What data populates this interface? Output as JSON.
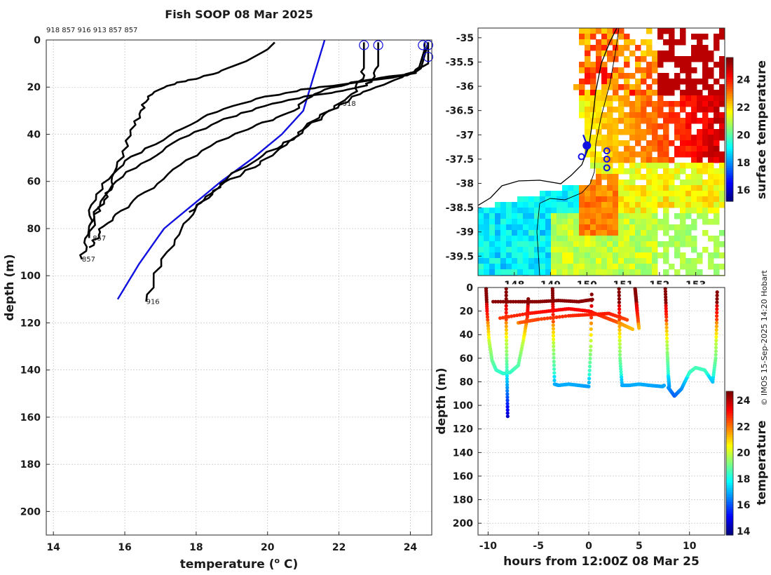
{
  "chart_data": [
    {
      "type": "line",
      "title": "Fish SOOP 08 Mar 2025",
      "xlabel": "temperature (",
      "xlabel_sup": "o",
      "xlabel_unit": " C)",
      "ylabel": "depth (m)",
      "xlim": [
        13.8,
        24.6
      ],
      "ylim": [
        0,
        210
      ],
      "xticks": [
        "14",
        "16",
        "18",
        "20",
        "22",
        "24"
      ],
      "yticks": [
        "0",
        "20",
        "40",
        "60",
        "80",
        "100",
        "120",
        "140",
        "160",
        "180",
        "200"
      ],
      "header_ids": "918 857 916 913 857 857",
      "series": [
        {
          "name": "climatology",
          "color": "#1010e0",
          "t": [
            21.6,
            21.4,
            21.2,
            21.0,
            20.4,
            19.6,
            18.7,
            17.9,
            17.1,
            16.4,
            15.8
          ],
          "d": [
            0,
            10,
            20,
            30,
            40,
            50,
            60,
            70,
            80,
            95,
            110
          ]
        },
        {
          "name": "918",
          "label": "918",
          "color": "#000000",
          "t": [
            24.4,
            24.4,
            24.3,
            24.2,
            23.2,
            22.4,
            21.6,
            21.1,
            20.7,
            20.1,
            19.4,
            18.4,
            17.6,
            16.9,
            16.3,
            15.8,
            15.4,
            15.2,
            15.0
          ],
          "d": [
            1,
            4,
            9,
            14,
            16,
            18,
            21,
            25,
            30,
            34,
            38,
            45,
            53,
            61,
            68,
            74,
            79,
            84,
            88
          ]
        },
        {
          "name": "857",
          "label": "857",
          "color": "#000000",
          "t": [
            20.2,
            20.0,
            19.4,
            18.7,
            18.1,
            17.5,
            16.9,
            16.6,
            16.5,
            16.3,
            16.0,
            15.8,
            15.6,
            15.4,
            15.2,
            15.0,
            14.9,
            14.8
          ],
          "d": [
            1,
            4,
            9,
            13,
            16,
            18,
            21,
            25,
            30,
            36,
            45,
            54,
            62,
            68,
            74,
            79,
            86,
            93
          ]
        },
        {
          "name": "916",
          "label": "916",
          "color": "#000000",
          "t": [
            24.5,
            24.3,
            23.6,
            22.8,
            22.3,
            21.8,
            21.3,
            20.8,
            20.2,
            19.5,
            18.9,
            18.5,
            18.1,
            17.7,
            17.3,
            16.9,
            16.6
          ],
          "d": [
            1,
            12,
            17,
            21,
            25,
            30,
            35,
            41,
            46,
            52,
            58,
            64,
            70,
            78,
            87,
            99,
            111
          ]
        },
        {
          "name": "913",
          "label": "",
          "color": "#000000",
          "t": [
            22.7,
            22.7,
            22.6,
            22.4,
            21.9,
            21.4,
            21.0,
            20.6,
            20.1,
            19.6,
            19.0,
            18.5,
            18.1,
            17.8
          ],
          "d": [
            1,
            12,
            18,
            23,
            28,
            33,
            38,
            43,
            49,
            54,
            59,
            64,
            69,
            73
          ]
        },
        {
          "name": "857b",
          "label": "857",
          "color": "#000000",
          "t": [
            23.1,
            23.1,
            23.0,
            22.6,
            21.9,
            21.1,
            20.2,
            19.3,
            18.4,
            17.6,
            16.8,
            16.1,
            15.5,
            15.2,
            15.0
          ],
          "d": [
            1,
            11,
            17,
            20,
            22,
            24,
            27,
            31,
            36,
            42,
            49,
            56,
            64,
            73,
            84
          ]
        },
        {
          "name": "857c",
          "label": "",
          "color": "#000000",
          "t": [
            24.5,
            24.5,
            23.9,
            23.0,
            22.0,
            21.0,
            20.0,
            19.0,
            18.2,
            17.4,
            16.6,
            15.9,
            15.4,
            15.1,
            15.0
          ],
          "d": [
            1,
            10,
            15,
            17,
            19,
            21,
            24,
            28,
            33,
            39,
            46,
            53,
            61,
            70,
            79
          ]
        }
      ],
      "labels": [
        {
          "text": "918",
          "t": 22.1,
          "d": 28
        },
        {
          "text": "857",
          "t": 15.1,
          "d": 85
        },
        {
          "text": "857",
          "t": 14.8,
          "d": 94
        },
        {
          "text": "916",
          "t": 16.6,
          "d": 112
        }
      ],
      "surface_marks_t": [
        22.7,
        23.1,
        24.35,
        24.5,
        24.5
      ],
      "surface_marks_d": [
        1,
        1,
        1,
        1,
        6
      ]
    },
    {
      "type": "heatmap",
      "title": "",
      "xlim": [
        147,
        153.8
      ],
      "ylim": [
        -39.9,
        -34.8
      ],
      "xticks": [
        "148",
        "149",
        "150",
        "151",
        "152",
        "153"
      ],
      "yticks": [
        "-35",
        "-35.5",
        "-36",
        "-36.5",
        "-37",
        "-37.5",
        "-38",
        "-38.5",
        "-39",
        "-39.5"
      ],
      "colorbar_label": "surface temperature",
      "colorbar_ticks": [
        "16",
        "18",
        "20",
        "22",
        "24"
      ],
      "colorbar_range": [
        15.2,
        25.6
      ],
      "track_lon": [
        149.9,
        150.0,
        150.0,
        149.95
      ],
      "track_lat": [
        -37.0,
        -37.2,
        -37.25,
        -37.45
      ],
      "station_lon": [
        150.0,
        149.85,
        150.55,
        150.55,
        150.55
      ],
      "station_lat": [
        -37.22,
        -37.45,
        -37.33,
        -37.5,
        -37.68
      ]
    },
    {
      "type": "scatter",
      "xlabel": "hours from 12:00Z 08 Mar 25",
      "ylabel": "depth (m)",
      "xlim": [
        -11,
        13.5
      ],
      "ylim": [
        0,
        210
      ],
      "xticks": [
        "-10",
        "-5",
        "0",
        "5",
        "10"
      ],
      "yticks": [
        "0",
        "20",
        "40",
        "60",
        "80",
        "100",
        "120",
        "140",
        "160",
        "180",
        "200"
      ],
      "colorbar_label": "temperature",
      "colorbar_ticks": [
        "14",
        "16",
        "18",
        "20",
        "22",
        "24"
      ],
      "colorbar_range": [
        13.7,
        24.7
      ],
      "tracks": [
        {
          "x": [
            -10.2,
            -10.1,
            -9.9,
            -9.6,
            -9.2,
            -8.5,
            -7.8,
            -7.0,
            -6.5,
            -6.1,
            -6.0
          ],
          "d": [
            1,
            20,
            45,
            62,
            70,
            73,
            72,
            66,
            45,
            25,
            8
          ]
        },
        {
          "x": [
            -8.2,
            -8.2,
            -8.15,
            -8.1,
            -8.05
          ],
          "d": [
            1,
            30,
            60,
            85,
            112
          ]
        },
        {
          "x": [
            -9.5,
            -7,
            -5,
            -3,
            -1,
            0.5
          ],
          "d": [
            12,
            12,
            12,
            11,
            12,
            10
          ]
        },
        {
          "x": [
            -3.6,
            -3.55,
            -3.5,
            -3.4,
            -3,
            -2,
            -1,
            0,
            0.2,
            0.3
          ],
          "d": [
            1,
            20,
            50,
            82,
            83,
            82,
            83,
            84,
            50,
            1
          ]
        },
        {
          "x": [
            -8.8,
            -6,
            -4,
            -2,
            0,
            1.5,
            3,
            4.5
          ],
          "d": [
            26,
            22,
            20,
            18,
            20,
            25,
            30,
            36
          ]
        },
        {
          "x": [
            -7,
            -5,
            -2,
            0,
            2,
            4
          ],
          "d": [
            30,
            27,
            24,
            23,
            22,
            28
          ]
        },
        {
          "x": [
            3.0,
            3.05,
            3.1,
            3.3,
            4,
            5,
            6,
            7.3,
            7.5
          ],
          "d": [
            1,
            30,
            60,
            83,
            83,
            82,
            83,
            84,
            83
          ]
        },
        {
          "x": [
            4.6,
            4.7,
            4.8,
            5.0
          ],
          "d": [
            1,
            10,
            20,
            36
          ]
        },
        {
          "x": [
            7.6,
            7.7,
            7.8,
            7.9,
            8.0
          ],
          "d": [
            1,
            25,
            55,
            75,
            85
          ]
        },
        {
          "x": [
            7.9,
            8.5,
            9.2,
            10,
            10.6,
            11.5,
            12.3,
            12.6,
            12.7,
            12.75
          ],
          "d": [
            85,
            92,
            86,
            72,
            68,
            70,
            80,
            60,
            30,
            1
          ]
        }
      ]
    }
  ],
  "credit": "© IMOS 15-Sep-2025 14:20 Hobart",
  "colors": {
    "axis": "#262626",
    "grid": "#bdbdbd",
    "climatology": "#1010e0",
    "profile": "#000000"
  }
}
